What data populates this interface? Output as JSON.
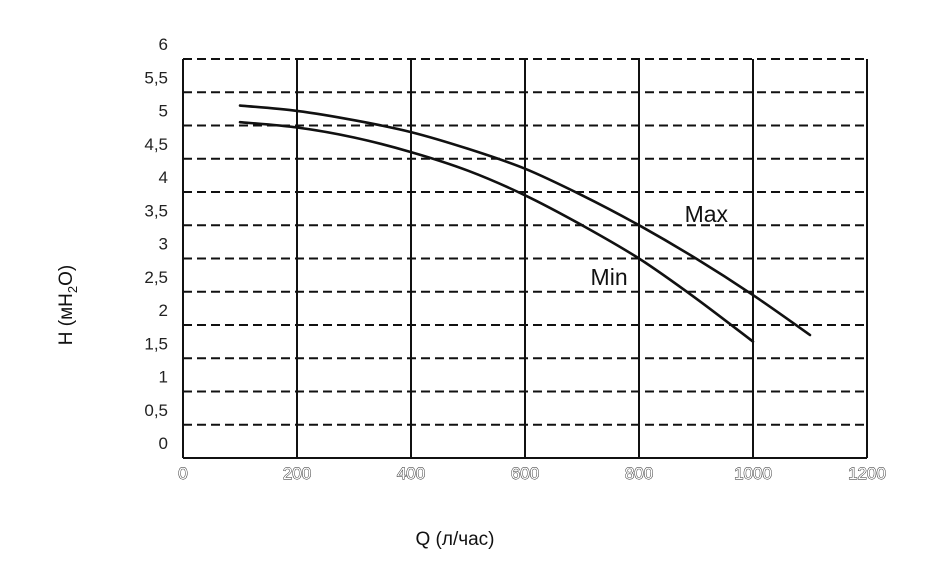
{
  "chart_data": {
    "type": "line",
    "title": "",
    "xlabel": "Q (л/час)",
    "ylabel": {
      "prefix": "H (м",
      "sub": "H",
      "subscript": "2",
      "suffix": "O)"
    },
    "xlim": [
      0,
      1200
    ],
    "ylim": [
      0,
      6
    ],
    "x_ticks": [
      {
        "value": 0,
        "label": "0"
      },
      {
        "value": 200,
        "label": "200"
      },
      {
        "value": 400,
        "label": "400"
      },
      {
        "value": 600,
        "label": "600"
      },
      {
        "value": 800,
        "label": "800"
      },
      {
        "value": 1000,
        "label": "1000"
      },
      {
        "value": 1200,
        "label": "1200"
      }
    ],
    "y_ticks": [
      {
        "value": 0,
        "label": "0"
      },
      {
        "value": 0.5,
        "label": "0,5"
      },
      {
        "value": 1,
        "label": "1"
      },
      {
        "value": 1.5,
        "label": "1,5"
      },
      {
        "value": 2,
        "label": "2"
      },
      {
        "value": 2.5,
        "label": "2,5"
      },
      {
        "value": 3,
        "label": "3"
      },
      {
        "value": 3.5,
        "label": "3,5"
      },
      {
        "value": 4,
        "label": "4"
      },
      {
        "value": 4.5,
        "label": "4,5"
      },
      {
        "value": 5,
        "label": "5"
      },
      {
        "value": 5.5,
        "label": "5,5"
      },
      {
        "value": 6,
        "label": "6"
      }
    ],
    "grid": {
      "vertical": "solid",
      "horizontal": "dashed"
    },
    "series": [
      {
        "name": "Max",
        "label_at": {
          "x": 880,
          "y": 3.55
        },
        "points": [
          {
            "x": 100,
            "y": 5.3
          },
          {
            "x": 200,
            "y": 5.22
          },
          {
            "x": 300,
            "y": 5.08
          },
          {
            "x": 400,
            "y": 4.9
          },
          {
            "x": 500,
            "y": 4.65
          },
          {
            "x": 600,
            "y": 4.35
          },
          {
            "x": 700,
            "y": 3.95
          },
          {
            "x": 800,
            "y": 3.5
          },
          {
            "x": 900,
            "y": 3.0
          },
          {
            "x": 1000,
            "y": 2.45
          },
          {
            "x": 1100,
            "y": 1.85
          }
        ]
      },
      {
        "name": "Min",
        "label_at": {
          "x": 715,
          "y": 2.6
        },
        "points": [
          {
            "x": 100,
            "y": 5.05
          },
          {
            "x": 200,
            "y": 4.97
          },
          {
            "x": 300,
            "y": 4.82
          },
          {
            "x": 400,
            "y": 4.6
          },
          {
            "x": 500,
            "y": 4.32
          },
          {
            "x": 600,
            "y": 3.95
          },
          {
            "x": 700,
            "y": 3.5
          },
          {
            "x": 800,
            "y": 3.0
          },
          {
            "x": 900,
            "y": 2.4
          },
          {
            "x": 1000,
            "y": 1.75
          }
        ]
      }
    ],
    "colors": {
      "line": "#111111",
      "grid": "#111111"
    }
  }
}
